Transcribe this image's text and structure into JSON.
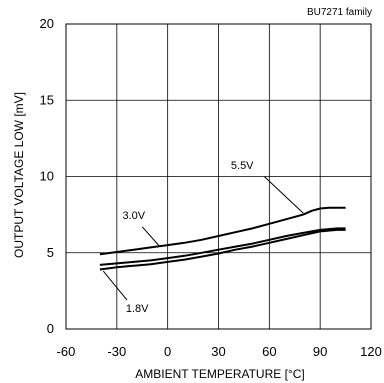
{
  "chart_data": {
    "type": "line",
    "title": "BU7271 family",
    "xlabel": "AMBIENT TEMPERATURE [°C]",
    "ylabel": "OUTPUT VOLTAGE LOW [mV]",
    "xlim": [
      -60,
      120
    ],
    "ylim": [
      0,
      20
    ],
    "xticks": [
      -60,
      -30,
      0,
      30,
      60,
      90,
      120
    ],
    "yticks": [
      0,
      5,
      10,
      15,
      20
    ],
    "grid": true,
    "series": [
      {
        "name": "5.5V",
        "x": [
          -40,
          -30,
          -20,
          -10,
          0,
          10,
          20,
          30,
          40,
          50,
          60,
          70,
          80,
          85,
          90,
          95,
          100,
          105
        ],
        "values": [
          4.9,
          5.05,
          5.2,
          5.35,
          5.5,
          5.65,
          5.85,
          6.1,
          6.35,
          6.6,
          6.9,
          7.2,
          7.5,
          7.75,
          7.9,
          7.95,
          7.95,
          7.95
        ]
      },
      {
        "name": "3.0V",
        "x": [
          -40,
          -30,
          -20,
          -10,
          0,
          10,
          20,
          30,
          40,
          50,
          60,
          70,
          80,
          90,
          100,
          105
        ],
        "values": [
          4.2,
          4.3,
          4.4,
          4.5,
          4.65,
          4.8,
          5.0,
          5.2,
          5.4,
          5.6,
          5.85,
          6.1,
          6.3,
          6.5,
          6.6,
          6.6
        ]
      },
      {
        "name": "1.8V",
        "x": [
          -40,
          -30,
          -20,
          -10,
          0,
          10,
          20,
          30,
          40,
          50,
          60,
          70,
          80,
          90,
          100,
          105
        ],
        "values": [
          3.9,
          4.05,
          4.15,
          4.25,
          4.4,
          4.55,
          4.75,
          4.95,
          5.2,
          5.4,
          5.65,
          5.9,
          6.15,
          6.4,
          6.5,
          6.5
        ]
      }
    ]
  }
}
